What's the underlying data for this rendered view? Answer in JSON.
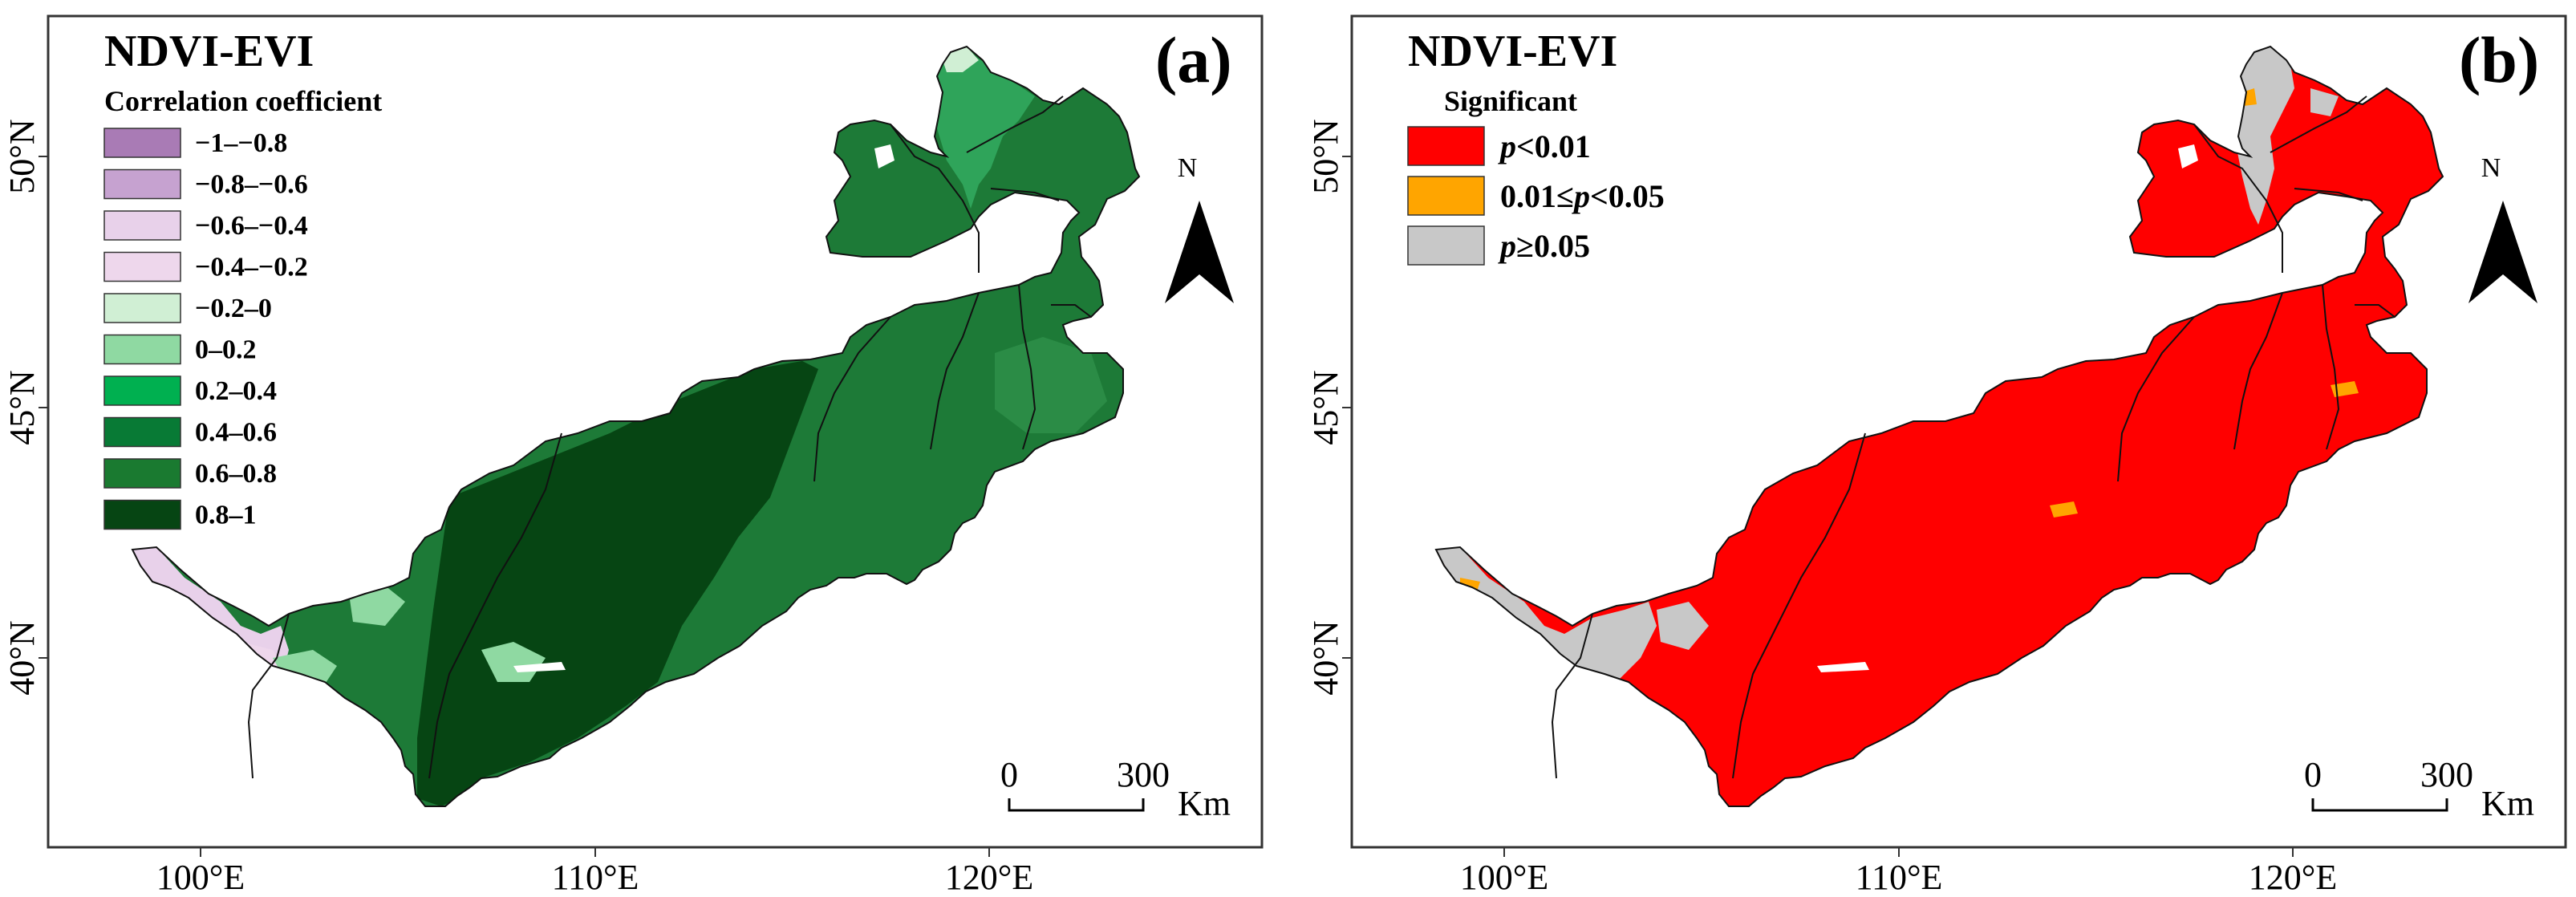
{
  "figure": {
    "panels": [
      {
        "id": "a",
        "title": "NDVI-EVI",
        "panel_label": "(a)",
        "legend_title": "Correlation coefficient",
        "legend": [
          {
            "label": "−1–−0.8",
            "color": "#a97bb5"
          },
          {
            "label": "−0.8–−0.6",
            "color": "#c6a2d0"
          },
          {
            "label": "−0.6–−0.4",
            "color": "#e8d1ea"
          },
          {
            "label": "−0.4–−0.2",
            "color": "#eed7ec"
          },
          {
            "label": "−0.2–0",
            "color": "#d0efd4"
          },
          {
            "label": "0–0.2",
            "color": "#8fd9a2"
          },
          {
            "label": "0.2–0.4",
            "color": "#00b050"
          },
          {
            "label": "0.4–0.6",
            "color": "#087a35"
          },
          {
            "label": "0.6–0.8",
            "color": "#1a7a30"
          },
          {
            "label": "0.8–1",
            "color": "#064513"
          }
        ],
        "map_base_color": "#1d7a37",
        "north_label": "N",
        "scale_zero": "0",
        "scale_max": "300",
        "scale_unit": "Km"
      },
      {
        "id": "b",
        "title": "NDVI-EVI",
        "panel_label": "(b)",
        "legend_title": "Significant",
        "legend": [
          {
            "label_italic": "p",
            "label_rest": "<0.01",
            "color": "#ff0000"
          },
          {
            "label_pre": "0.01≤",
            "label_italic": "p",
            "label_rest": "<0.05",
            "color": "#ffa500"
          },
          {
            "label_italic": "p",
            "label_rest": "≥0.05",
            "color": "#c8c8c8"
          }
        ],
        "map_base_color": "#ff0000",
        "north_label": "N",
        "scale_zero": "0",
        "scale_max": "300",
        "scale_unit": "Km"
      }
    ],
    "axes": {
      "lat_labels": [
        "50°N",
        "45°N",
        "40°N"
      ],
      "lon_labels": [
        "100°E",
        "110°E",
        "120°E"
      ]
    }
  }
}
